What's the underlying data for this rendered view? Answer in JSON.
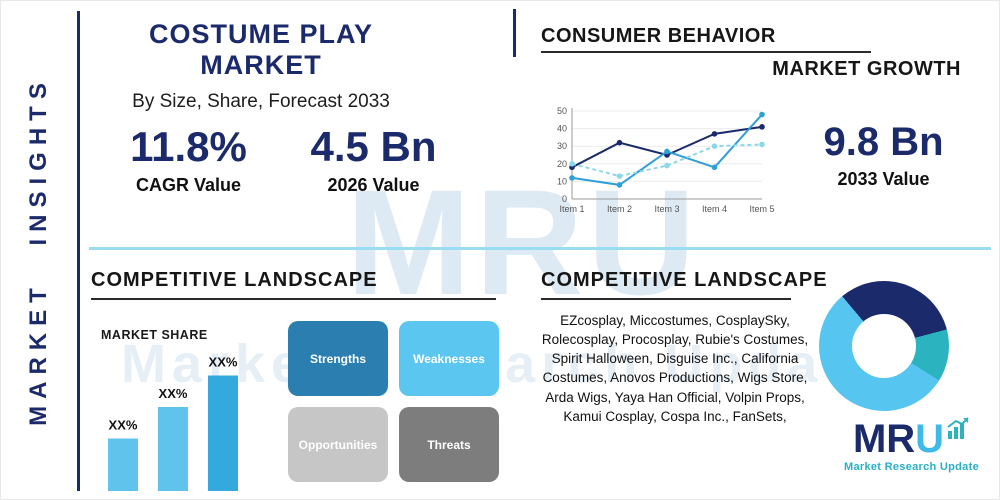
{
  "accent": {
    "navy": "#1b2a6b",
    "teal": "#2bb3c0",
    "sky": "#56c5f0",
    "divider": "#9adcf0"
  },
  "sidebar": {
    "label": "MARKET INSIGHTS"
  },
  "header": {
    "title": "COSTUME PLAY MARKET",
    "subtitle": "By Size, Share, Forecast 2033"
  },
  "stats": {
    "cagr": {
      "value": "11.8%",
      "label": "CAGR Value"
    },
    "base_year": {
      "value": "4.5 Bn",
      "label": "2026 Value"
    },
    "forecast_year": {
      "value": "9.8 Bn",
      "label": "2033 Value"
    }
  },
  "sections": {
    "consumer_behavior": "CONSUMER BEHAVIOR",
    "market_growth": "MARKET GROWTH",
    "competitive_landscape_left": "COMPETITIVE LANDSCAPE",
    "competitive_landscape_right": "COMPETITIVE LANDSCAPE"
  },
  "companies_text": "EZcosplay, Miccostumes, CosplaySky, Rolecosplay, Procosplay, Rubie's Costumes, Spirit Halloween, Disguise Inc., California Costumes, Anovos Productions, Wigs Store, Arda Wigs, Yaya Han Official, Volpin Props, Kamui Cosplay, Cospa Inc., FanSets,",
  "swot": {
    "items": [
      {
        "label": "Strengths",
        "color": "#2a7fb0"
      },
      {
        "label": "Weaknesses",
        "color": "#5bc6f0"
      },
      {
        "label": "Opportunities",
        "color": "#c6c6c6"
      },
      {
        "label": "Threats",
        "color": "#7d7d7d"
      }
    ]
  },
  "watermark": {
    "text": "MRU",
    "subtext": "Market Research Update"
  },
  "logo": {
    "text_primary": "MR",
    "text_accent": "U",
    "subtext": "Market Research Update"
  },
  "chart_data": [
    {
      "id": "growth-line",
      "type": "line",
      "title": "MARKET GROWTH",
      "x": [
        "Item 1",
        "Item 2",
        "Item 3",
        "Item 4",
        "Item 5"
      ],
      "series": [
        {
          "name": "series-navy",
          "color": "#1b2a6b",
          "dashed": false,
          "values": [
            18,
            32,
            25,
            37,
            41
          ]
        },
        {
          "name": "series-blue",
          "color": "#2f9fd8",
          "dashed": false,
          "values": [
            12,
            8,
            27,
            18,
            48
          ]
        },
        {
          "name": "series-cyan",
          "color": "#8ed7ea",
          "dashed": true,
          "values": [
            20,
            13,
            19,
            30,
            31
          ]
        }
      ],
      "ylim": [
        0,
        50
      ],
      "yticks": [
        0,
        10,
        20,
        30,
        40,
        50
      ],
      "grid": true,
      "legend": "none"
    },
    {
      "id": "market-share-bars",
      "type": "bar",
      "title": "MARKET SHARE",
      "categories": [
        "XX%",
        "XX%",
        "XX%"
      ],
      "values": [
        25,
        40,
        55
      ],
      "colors": [
        "#5fc3ec",
        "#5fc3ec",
        "#33a9de"
      ],
      "ylim": [
        0,
        60
      ]
    },
    {
      "id": "donut",
      "type": "pie",
      "from_deg": -40,
      "slices": [
        {
          "name": "segment-1",
          "value": 32,
          "color": "#1b2a6b"
        },
        {
          "name": "segment-2",
          "value": 13,
          "color": "#2bb3c0"
        },
        {
          "name": "segment-3",
          "value": 55,
          "color": "#56c5f0"
        }
      ]
    }
  ]
}
